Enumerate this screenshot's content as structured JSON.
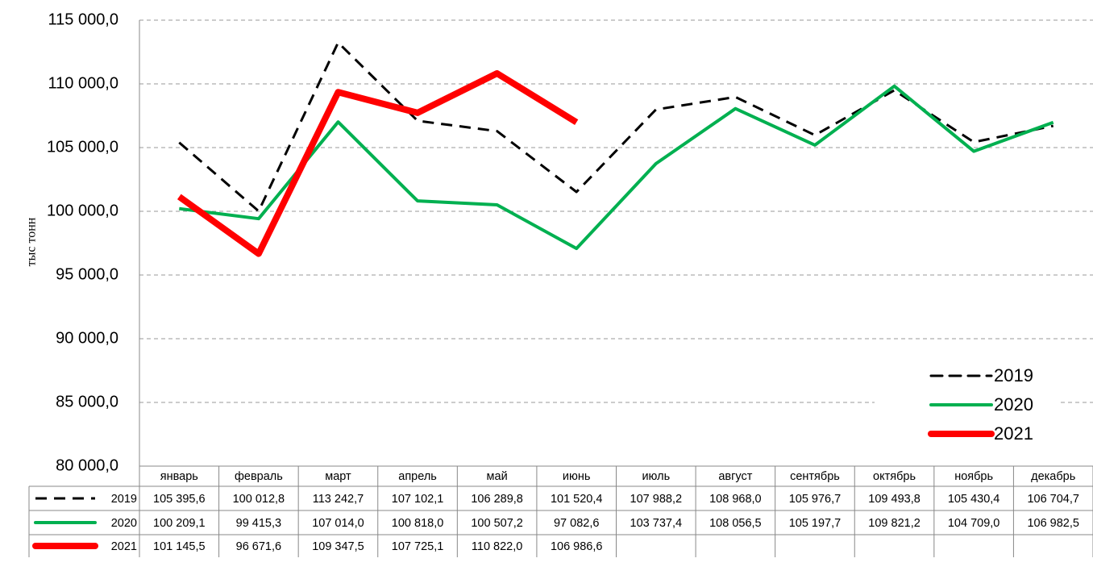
{
  "chart_data": {
    "type": "line",
    "y_label": "тыс тонн",
    "categories": [
      "январь",
      "февраль",
      "март",
      "апрель",
      "май",
      "июнь",
      "июль",
      "август",
      "сентябрь",
      "октябрь",
      "ноябрь",
      "декабрь"
    ],
    "series": [
      {
        "name": "2019",
        "color": "#000000",
        "linestyle": "dashed",
        "values": [
          105395.6,
          100012.8,
          113242.7,
          107102.1,
          106289.8,
          101520.4,
          107988.2,
          108968.0,
          105976.7,
          109493.8,
          105430.4,
          106704.7
        ],
        "value_labels": [
          "105 395,6",
          "100 012,8",
          "113 242,7",
          "107 102,1",
          "106 289,8",
          "101 520,4",
          "107 988,2",
          "108 968,0",
          "105 976,7",
          "109 493,8",
          "105 430,4",
          "106 704,7"
        ]
      },
      {
        "name": "2020",
        "color": "#00b050",
        "linestyle": "solid",
        "values": [
          100209.1,
          99415.3,
          107014.0,
          100818.0,
          100507.2,
          97082.6,
          103737.4,
          108056.5,
          105197.7,
          109821.2,
          104709.0,
          106982.5
        ],
        "value_labels": [
          "100 209,1",
          "99 415,3",
          "107 014,0",
          "100 818,0",
          "100 507,2",
          "97 082,6",
          "103 737,4",
          "108 056,5",
          "105 197,7",
          "109 821,2",
          "104 709,0",
          "106 982,5"
        ]
      },
      {
        "name": "2021",
        "color": "#ff0000",
        "linestyle": "solid",
        "values": [
          101145.5,
          96671.6,
          109347.5,
          107725.1,
          110822.0,
          106986.6,
          null,
          null,
          null,
          null,
          null,
          null
        ],
        "value_labels": [
          "101 145,5",
          "96 671,6",
          "109 347,5",
          "107 725,1",
          "110 822,0",
          "106 986,6",
          null,
          null,
          null,
          null,
          null,
          null
        ]
      }
    ],
    "ylim": [
      80000,
      115000
    ],
    "yticks": [
      {
        "value": 80000,
        "label": "80 000,0"
      },
      {
        "value": 85000,
        "label": "85 000,0"
      },
      {
        "value": 90000,
        "label": "90 000,0"
      },
      {
        "value": 95000,
        "label": "95 000,0"
      },
      {
        "value": 100000,
        "label": "100 000,0"
      },
      {
        "value": 105000,
        "label": "105 000,0"
      },
      {
        "value": 110000,
        "label": "110 000,0"
      },
      {
        "value": 115000,
        "label": "115 000,0"
      }
    ],
    "grid": true,
    "legend": "lower right",
    "data_table": true
  }
}
